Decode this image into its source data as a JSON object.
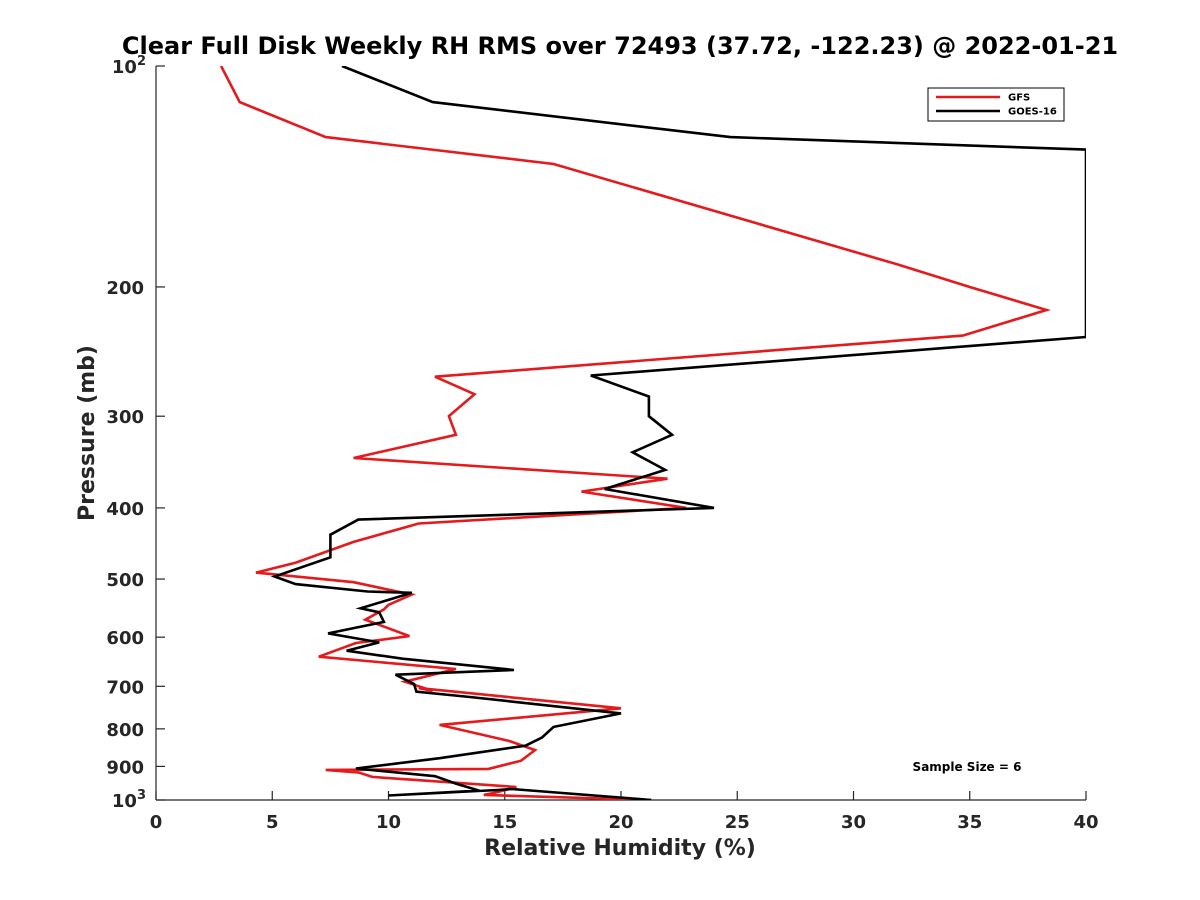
{
  "chart_data": {
    "type": "line",
    "title": "Clear Full Disk Weekly RH RMS over 72493 (37.72, -122.23) @ 2022-01-21",
    "xlabel": "Relative Humidity (%)",
    "ylabel": "Pressure (mb)",
    "xlim": [
      0,
      40
    ],
    "ylim": [
      100,
      1000
    ],
    "y_scale": "log",
    "y_reversed": true,
    "x_ticks": [
      "0",
      "5",
      "10",
      "15",
      "20",
      "25",
      "30",
      "35",
      "40"
    ],
    "y_ticks": [
      {
        "value": 100,
        "base": "10",
        "exp": "2"
      },
      {
        "value": 200,
        "label": "200"
      },
      {
        "value": 300,
        "label": "300"
      },
      {
        "value": 400,
        "label": "400"
      },
      {
        "value": 500,
        "label": "500"
      },
      {
        "value": 600,
        "label": "600"
      },
      {
        "value": 700,
        "label": "700"
      },
      {
        "value": 800,
        "label": "800"
      },
      {
        "value": 900,
        "label": "900"
      },
      {
        "value": 1000,
        "base": "10",
        "exp": "3"
      }
    ],
    "grid": false,
    "legend_position": "top-right",
    "series": [
      {
        "name": "GFS",
        "color": "#e41a1c",
        "x": [
          2.8,
          3.6,
          7.3,
          17.1,
          31.8,
          35.0,
          38.3,
          34.7,
          12.0,
          13.7,
          12.6,
          12.9,
          8.5,
          22.0,
          18.3,
          22.8,
          11.3,
          8.5,
          6.0,
          4.3,
          8.5,
          11.0,
          10.0,
          9.8,
          9.0,
          10.9,
          8.6,
          7.0,
          12.9,
          10.7,
          11.9,
          11.3,
          20.0,
          12.2,
          15.2,
          16.3,
          15.7,
          14.3,
          7.3,
          8.7,
          9.3,
          15.5,
          14.6,
          14.1,
          21.3
        ],
        "y": [
          100,
          112,
          125,
          136,
          186,
          200,
          215,
          233,
          265,
          280,
          300,
          318,
          342,
          365,
          380,
          400,
          420,
          445,
          475,
          490,
          505,
          525,
          542,
          550,
          568,
          598,
          611,
          638,
          663,
          690,
          710,
          704,
          750,
          790,
          831,
          855,
          884,
          907,
          910,
          917,
          930,
          960,
          977,
          984,
          1000
        ]
      },
      {
        "name": "GOES-16",
        "color": "#000000",
        "x": [
          8.0,
          11.9,
          24.7,
          40.0,
          40.0,
          18.7,
          21.2,
          21.2,
          22.2,
          20.5,
          21.9,
          19.3,
          24.0,
          8.7,
          7.5,
          7.5,
          5.1,
          6.0,
          9.1,
          11.0,
          8.8,
          9.6,
          9.8,
          7.4,
          9.6,
          8.2,
          10.6,
          15.4,
          10.3,
          11.1,
          11.2,
          13.5,
          20.0,
          17.1,
          16.6,
          15.9,
          12.2,
          8.6,
          12.0,
          12.9,
          13.9,
          10.0,
          14.7,
          15.3,
          21.3
        ],
        "y": [
          100,
          112,
          125,
          130,
          234,
          264,
          282,
          300,
          318,
          336,
          355,
          377,
          400,
          415,
          435,
          467,
          496,
          508,
          520,
          522,
          548,
          555,
          572,
          593,
          610,
          626,
          642,
          665,
          675,
          695,
          712,
          724,
          762,
          795,
          822,
          843,
          877,
          906,
          928,
          950,
          971,
          986,
          969,
          966,
          1000
        ]
      }
    ],
    "annotation": "Sample Size = 6"
  }
}
